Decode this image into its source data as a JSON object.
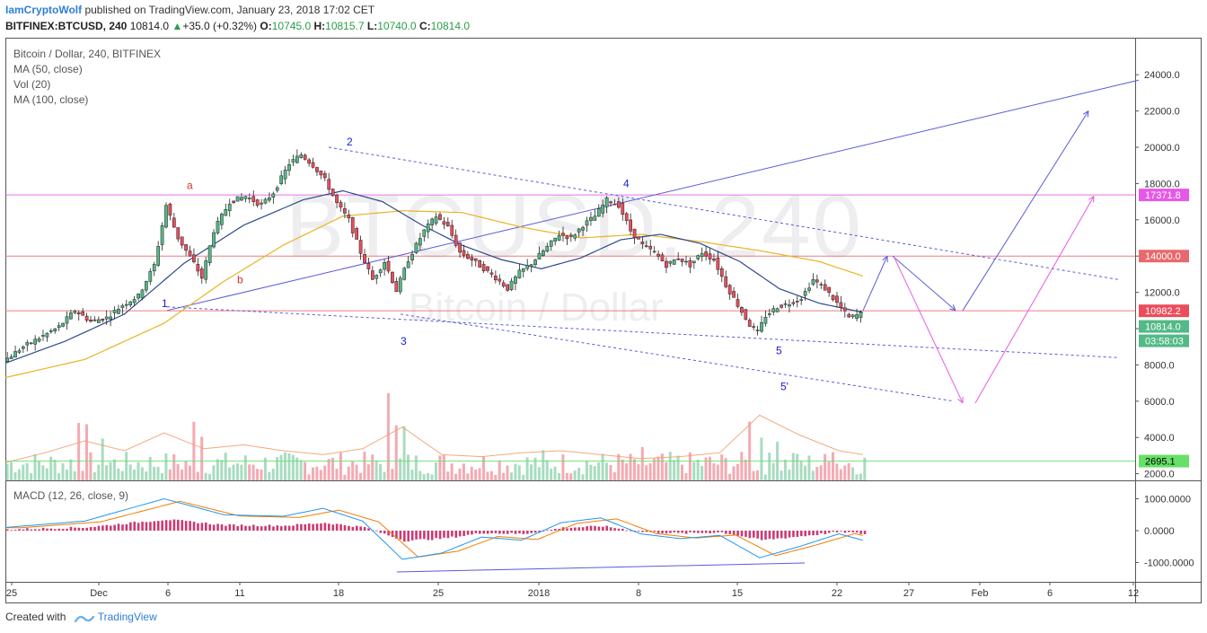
{
  "header": {
    "author": "IamCryptoWolf",
    "published_text": " published on TradingView.com, January 23, 2018 17:02 CET",
    "symbol": "BITFINEX:BTCUSD, 240",
    "last": "10814.0",
    "change": "+35.0 (+0.32%)",
    "o_label": "O:",
    "o_value": "10745.0",
    "h_label": "H:",
    "h_value": "10815.7",
    "l_label": "L:",
    "l_value": "10740.0",
    "c_label": "C:",
    "c_value": "10814.0"
  },
  "legend": {
    "title": "Bitcoin / Dollar, 240, BITFINEX",
    "ma50": "MA (50, close)",
    "vol": "Vol (20)",
    "ma100": "MA (100, close)",
    "macd": "MACD (12, 26, close, 9)"
  },
  "watermark": {
    "symbol": "BTCUSD, 240",
    "name": "Bitcoin / Dollar"
  },
  "footer": {
    "created_with": "Created with",
    "brand": "TradingView"
  },
  "colors": {
    "up": "#53b987",
    "down": "#eb4d5c",
    "ma50": "#2c4a8a",
    "ma100": "#e8b423",
    "trend": "#5b5bd6",
    "magenta": "#e659e6",
    "red_level": "#e8696d",
    "green_level": "#66e066"
  },
  "chart_data": {
    "type": "candlestick",
    "title": "Bitcoin / Dollar, 240, BITFINEX",
    "y_ticks": [
      "24000.0",
      "22000.0",
      "20000.0",
      "18000.0",
      "16000.0",
      "14000.0",
      "12000.0",
      "10000.0",
      "8000.0",
      "6000.0",
      "4000.0",
      "2000.0"
    ],
    "x_ticks": [
      "25",
      "Dec",
      "6",
      "11",
      "18",
      "25",
      "2018",
      "8",
      "15",
      "22",
      "27",
      "Feb",
      "6",
      "12"
    ],
    "ylim": [
      1800,
      25000
    ],
    "price_labels": [
      {
        "value": "17371.8",
        "color": "#e659e6"
      },
      {
        "value": "14000.0",
        "color": "#e8696d"
      },
      {
        "value": "10982.2",
        "color": "#eb4d5c"
      },
      {
        "value": "10814.0",
        "color": "#53b987"
      },
      {
        "value": "03:58:03",
        "color": "#53b987"
      },
      {
        "value": "2695.1",
        "color": "#66e066"
      }
    ],
    "horizontal_levels": [
      17371.8,
      14000.0,
      10982.2,
      2695.1
    ],
    "wave_labels": [
      {
        "text": "a",
        "color": "#d32f2f"
      },
      {
        "text": "b",
        "color": "#d32f2f"
      },
      {
        "text": "1",
        "color": "#1a1ad6"
      },
      {
        "text": "2",
        "color": "#1a1ad6"
      },
      {
        "text": "3",
        "color": "#1a1ad6"
      },
      {
        "text": "4",
        "color": "#1a1ad6"
      },
      {
        "text": "5",
        "color": "#1a1ad6"
      },
      {
        "text": "5'",
        "color": "#1a1ad6"
      }
    ],
    "price_path": [
      [
        0,
        8200
      ],
      [
        5,
        9000
      ],
      [
        10,
        9600
      ],
      [
        14,
        10100
      ],
      [
        18,
        11000
      ],
      [
        22,
        10400
      ],
      [
        26,
        10600
      ],
      [
        30,
        11300
      ],
      [
        34,
        11800
      ],
      [
        38,
        13500
      ],
      [
        41,
        16800
      ],
      [
        44,
        15000
      ],
      [
        48,
        13600
      ],
      [
        50,
        12800
      ],
      [
        53,
        15400
      ],
      [
        57,
        17000
      ],
      [
        61,
        17300
      ],
      [
        65,
        16800
      ],
      [
        68,
        17500
      ],
      [
        72,
        19100
      ],
      [
        75,
        19600
      ],
      [
        78,
        19000
      ],
      [
        81,
        18200
      ],
      [
        84,
        16900
      ],
      [
        87,
        16000
      ],
      [
        90,
        14200
      ],
      [
        93,
        12700
      ],
      [
        96,
        13700
      ],
      [
        99,
        12100
      ],
      [
        102,
        13800
      ],
      [
        106,
        15400
      ],
      [
        109,
        16200
      ],
      [
        112,
        15600
      ],
      [
        115,
        14200
      ],
      [
        118,
        13800
      ],
      [
        121,
        13300
      ],
      [
        124,
        12800
      ],
      [
        127,
        12200
      ],
      [
        130,
        13100
      ],
      [
        133,
        13600
      ],
      [
        137,
        14500
      ],
      [
        140,
        15200
      ],
      [
        143,
        15000
      ],
      [
        146,
        15700
      ],
      [
        149,
        16200
      ],
      [
        152,
        17100
      ],
      [
        155,
        16800
      ],
      [
        158,
        15400
      ],
      [
        161,
        14600
      ],
      [
        164,
        14200
      ],
      [
        167,
        13500
      ],
      [
        170,
        13900
      ],
      [
        173,
        13500
      ],
      [
        176,
        14200
      ],
      [
        179,
        13800
      ],
      [
        182,
        12400
      ],
      [
        185,
        11300
      ],
      [
        188,
        10200
      ],
      [
        190,
        9800
      ],
      [
        192,
        10700
      ],
      [
        195,
        11200
      ],
      [
        198,
        11400
      ],
      [
        201,
        11700
      ],
      [
        204,
        12700
      ],
      [
        207,
        12200
      ],
      [
        210,
        11400
      ],
      [
        213,
        10600
      ],
      [
        216,
        10814
      ]
    ],
    "ma50_path": [
      [
        0,
        8100
      ],
      [
        15,
        9300
      ],
      [
        30,
        10800
      ],
      [
        45,
        13600
      ],
      [
        60,
        15700
      ],
      [
        75,
        17100
      ],
      [
        85,
        17600
      ],
      [
        95,
        17000
      ],
      [
        105,
        15700
      ],
      [
        115,
        14600
      ],
      [
        125,
        13800
      ],
      [
        135,
        13300
      ],
      [
        145,
        13900
      ],
      [
        155,
        14900
      ],
      [
        165,
        15200
      ],
      [
        175,
        14700
      ],
      [
        185,
        13700
      ],
      [
        195,
        12200
      ],
      [
        205,
        11400
      ],
      [
        216,
        10900
      ]
    ],
    "ma100_path": [
      [
        0,
        7300
      ],
      [
        20,
        8300
      ],
      [
        40,
        10300
      ],
      [
        55,
        12600
      ],
      [
        70,
        14600
      ],
      [
        85,
        16200
      ],
      [
        100,
        16500
      ],
      [
        115,
        16400
      ],
      [
        130,
        15600
      ],
      [
        145,
        15000
      ],
      [
        160,
        15200
      ],
      [
        175,
        14800
      ],
      [
        190,
        14300
      ],
      [
        205,
        13700
      ],
      [
        216,
        12900
      ]
    ],
    "volume_path": [
      [
        0,
        2900
      ],
      [
        10,
        3400
      ],
      [
        20,
        4000
      ],
      [
        30,
        3500
      ],
      [
        40,
        4400
      ],
      [
        50,
        3600
      ],
      [
        60,
        3800
      ],
      [
        70,
        3500
      ],
      [
        80,
        3300
      ],
      [
        90,
        3600
      ],
      [
        100,
        4700
      ],
      [
        110,
        3300
      ],
      [
        120,
        3200
      ],
      [
        130,
        3400
      ],
      [
        140,
        3500
      ],
      [
        150,
        3300
      ],
      [
        160,
        3100
      ],
      [
        170,
        3200
      ],
      [
        180,
        3400
      ],
      [
        190,
        5300
      ],
      [
        200,
        4300
      ],
      [
        210,
        3500
      ],
      [
        216,
        3300
      ]
    ],
    "macd_ylim": [
      -1100,
      1300
    ],
    "macd_ticks": [
      "1000.0000",
      "0.0000",
      "-1000.0000"
    ],
    "macd_path": [
      [
        0,
        100
      ],
      [
        20,
        300
      ],
      [
        40,
        1000
      ],
      [
        55,
        500
      ],
      [
        70,
        450
      ],
      [
        80,
        700
      ],
      [
        90,
        300
      ],
      [
        100,
        -900
      ],
      [
        110,
        -700
      ],
      [
        120,
        -200
      ],
      [
        130,
        -300
      ],
      [
        140,
        250
      ],
      [
        150,
        400
      ],
      [
        160,
        -100
      ],
      [
        170,
        -250
      ],
      [
        180,
        -150
      ],
      [
        190,
        -850
      ],
      [
        200,
        -500
      ],
      [
        210,
        -100
      ],
      [
        216,
        -300
      ]
    ]
  }
}
